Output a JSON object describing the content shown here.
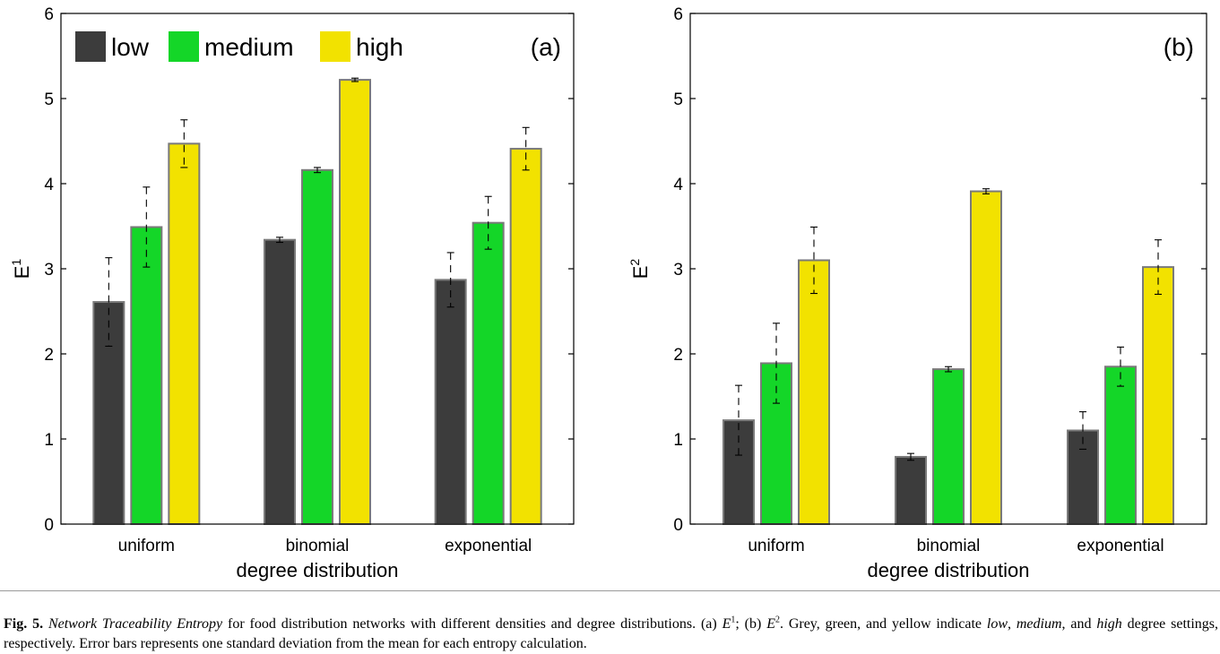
{
  "legend": {
    "entries": [
      {
        "label": "low",
        "color": "#3c3c3c"
      },
      {
        "label": "medium",
        "color": "#14d628"
      },
      {
        "label": "high",
        "color": "#f2e200"
      }
    ]
  },
  "caption": {
    "fig_label": "Fig. 5.",
    "title_italic": "Network Traceability Entropy",
    "text_1": " for food distribution networks with different densities and degree distributions. (a) ",
    "e1_base": "E",
    "e1_sup": "1",
    "text_2": "; (b) ",
    "e2_base": "E",
    "e2_sup": "2",
    "text_3": ". Grey, green, and yellow indicate ",
    "low": "low",
    "comma_1": ", ",
    "medium": "medium",
    "text_4": ", and ",
    "high": "high",
    "text_5": " degree settings, respectively. Error bars represents one standard deviation from the mean for each entropy calculation."
  },
  "chart_data": [
    {
      "type": "bar",
      "panel_label": "(a)",
      "categories": [
        "uniform",
        "binomial",
        "exponential"
      ],
      "xlabel": "degree distribution",
      "ylabel_base": "E",
      "ylabel_sup": "1",
      "ylim": [
        0,
        6
      ],
      "yticks": [
        "0",
        "1",
        "2",
        "3",
        "4",
        "5",
        "6"
      ],
      "legend_position": "top-left",
      "grid": false,
      "series": [
        {
          "name": "low",
          "color": "#3c3c3c",
          "values": [
            2.61,
            3.34,
            2.87
          ],
          "errors": [
            0.52,
            0.03,
            0.32
          ]
        },
        {
          "name": "medium",
          "color": "#14d628",
          "values": [
            3.49,
            4.16,
            3.54
          ],
          "errors": [
            0.47,
            0.03,
            0.31
          ]
        },
        {
          "name": "high",
          "color": "#f2e200",
          "values": [
            4.47,
            5.22,
            4.41
          ],
          "errors": [
            0.28,
            0.02,
            0.25
          ]
        }
      ]
    },
    {
      "type": "bar",
      "panel_label": "(b)",
      "categories": [
        "uniform",
        "binomial",
        "exponential"
      ],
      "xlabel": "degree distribution",
      "ylabel_base": "E",
      "ylabel_sup": "2",
      "ylim": [
        0,
        6
      ],
      "yticks": [
        "0",
        "1",
        "2",
        "3",
        "4",
        "5",
        "6"
      ],
      "legend_position": "none",
      "grid": false,
      "series": [
        {
          "name": "low",
          "color": "#3c3c3c",
          "values": [
            1.22,
            0.79,
            1.1
          ],
          "errors": [
            0.41,
            0.04,
            0.22
          ]
        },
        {
          "name": "medium",
          "color": "#14d628",
          "values": [
            1.89,
            1.82,
            1.85
          ],
          "errors": [
            0.47,
            0.03,
            0.23
          ]
        },
        {
          "name": "high",
          "color": "#f2e200",
          "values": [
            3.1,
            3.91,
            3.02
          ],
          "errors": [
            0.39,
            0.03,
            0.32
          ]
        }
      ]
    }
  ]
}
